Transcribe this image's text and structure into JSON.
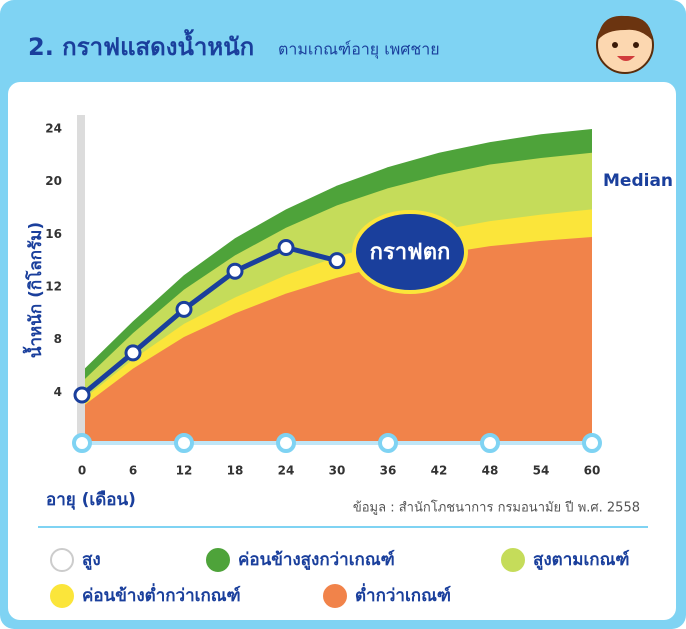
{
  "chart_data": {
    "type": "band-area",
    "title": "2. กราฟแสดงน้ำหนัก",
    "subtitle": "ตามเกณฑ์อายุ เพศชาย",
    "ylabel": "น้ำหนัก (กิโลกรัม)",
    "xlabel": "อายุ (เดือน)",
    "source": "ข้อมูล : สำนักโภชนาการ กรมอนามัย ปี พ.ศ. 2558",
    "median_label": "Median",
    "callout": "กราฟตก",
    "xlim": [
      0,
      60
    ],
    "xticks": [
      0,
      6,
      12,
      18,
      24,
      30,
      36,
      42,
      48,
      54,
      60
    ],
    "ylim": [
      0,
      24
    ],
    "yticks": [
      4,
      8,
      12,
      16,
      20,
      24
    ],
    "x": [
      0,
      6,
      12,
      18,
      24,
      30,
      36,
      42,
      48,
      54,
      60
    ],
    "series": [
      {
        "name": "สูง",
        "color": "#ffffff"
      },
      {
        "name": "ค่อนข้างสูงกว่าเกณฑ์",
        "color": "#4ea33a",
        "values": [
          5.6,
          9.4,
          12.9,
          15.7,
          17.9,
          19.7,
          21.1,
          22.2,
          23,
          23.6,
          24
        ]
      },
      {
        "name": "สูงตามเกณฑ์",
        "color": "#c5dc5a",
        "values": [
          4.8,
          8.5,
          11.8,
          14.4,
          16.5,
          18.2,
          19.5,
          20.5,
          21.3,
          21.8,
          22.2
        ]
      },
      {
        "name": "ค่อนข้างต่ำกว่าเกณฑ์",
        "color": "#fbe53a",
        "values": [
          3.4,
          6.5,
          9.2,
          11.2,
          12.9,
          14.3,
          15.4,
          16.3,
          17,
          17.5,
          17.9
        ]
      },
      {
        "name": "ต่ำกว่าเกณฑ์",
        "color": "#f1834a",
        "values": [
          2.9,
          5.8,
          8.2,
          10,
          11.5,
          12.7,
          13.7,
          14.5,
          15.1,
          15.5,
          15.8
        ]
      }
    ],
    "child": {
      "color": "#1a3f9c",
      "x": [
        0,
        6,
        12,
        18,
        24,
        30
      ],
      "values": [
        3.8,
        7,
        10.3,
        13.2,
        15,
        14
      ]
    }
  }
}
